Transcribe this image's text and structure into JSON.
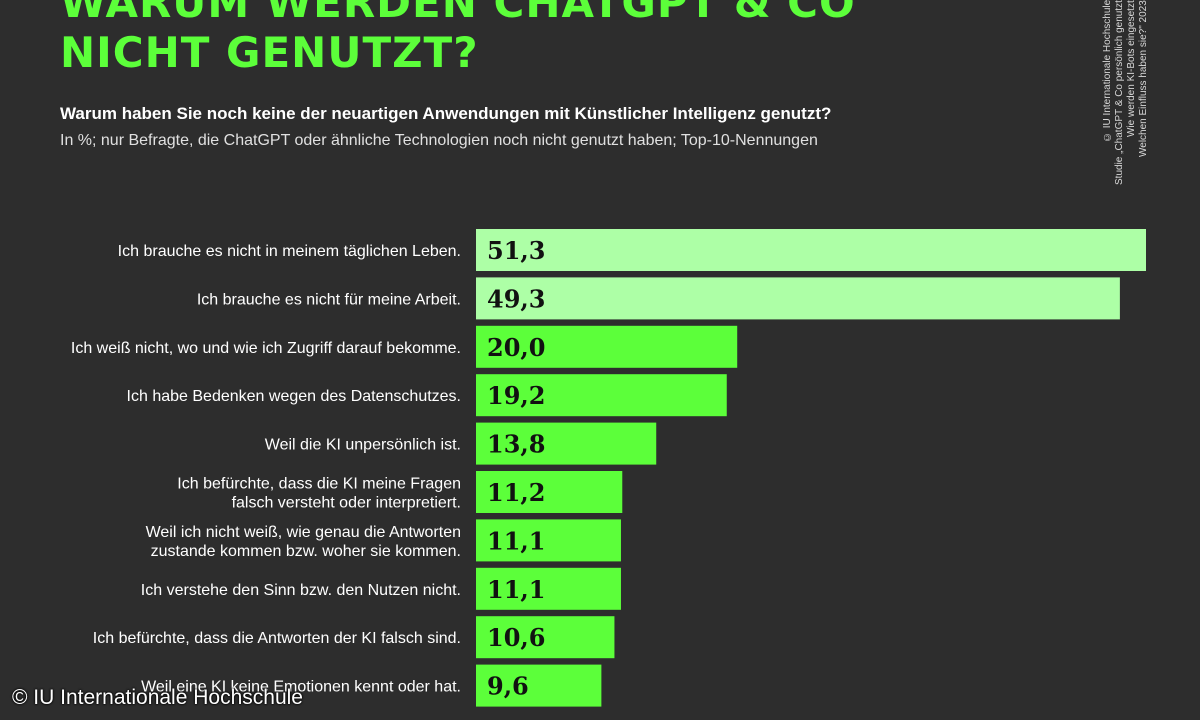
{
  "header": {
    "title_line1": "WARUM WERDEN CHATGPT & CO",
    "title_line2": "NICHT GENUTZT?",
    "subtitle": "Warum haben Sie noch keine der neuartigen Anwendungen mit Künstlicher Intelligenz genutzt?",
    "note": "In %; nur Befragte, die ChatGPT oder ähnliche Technologien noch nicht genutzt haben; Top-10-Nennungen"
  },
  "side_credit": {
    "line1": "© IU Internationale Hochschule",
    "line2": "Studie „ChatGPT & Co persönlich genutzt",
    "line3": "Wie werden KI-Bots eingesetzt",
    "line4": "Welchen Einfluss haben sie?\" 2023"
  },
  "footer": {
    "credit": "© IU Internationale Hochschule"
  },
  "colors": {
    "background": "#2d2d2d",
    "title": "#5cff3a",
    "bar_highlight": "#adffa6",
    "bar_default": "#5cff3a",
    "value_text": "#111111",
    "label_text": "#ffffff"
  },
  "chart_data": {
    "type": "bar",
    "orientation": "horizontal",
    "title": "WARUM WERDEN CHATGPT & CO NICHT GENUTZT?",
    "xlabel": "",
    "ylabel": "",
    "xlim": [
      0,
      51.3
    ],
    "grid": false,
    "legend": "none",
    "categories": [
      "Ich brauche es nicht in meinem täglichen Leben.",
      "Ich brauche es nicht für meine Arbeit.",
      "Ich weiß nicht, wo und wie ich Zugriff darauf bekomme.",
      "Ich habe Bedenken wegen des Datenschutzes.",
      "Weil die KI unpersönlich ist.",
      "Ich befürchte, dass die KI meine Fragen\nfalsch versteht oder interpretiert.",
      "Weil ich nicht weiß, wie genau die Antworten\nzustande kommen bzw. woher sie kommen.",
      "Ich verstehe den Sinn bzw. den Nutzen nicht.",
      "Ich befürchte, dass die Antworten der KI falsch sind.",
      "Weil eine KI keine Emotionen kennt oder hat."
    ],
    "values": [
      51.3,
      49.3,
      20.0,
      19.2,
      13.8,
      11.2,
      11.1,
      11.1,
      10.6,
      9.6
    ],
    "value_labels": [
      "51,3",
      "49,3",
      "20,0",
      "19,2",
      "13,8",
      "11,2",
      "11,1",
      "11,1",
      "10,6",
      "9,6"
    ],
    "highlighted_bars": [
      0,
      1
    ]
  }
}
